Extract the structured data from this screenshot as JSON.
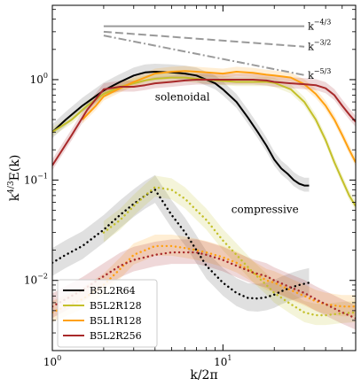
{
  "chart_data": {
    "type": "line",
    "xlabel": "k/2π",
    "ylabel": "k^4/3 E(k)",
    "xscale": "log",
    "yscale": "log",
    "xlim": [
      1,
      60
    ],
    "ylim": [
      0.002,
      5.5
    ],
    "xticks": [
      {
        "value": 1,
        "label": "10",
        "exp": "0"
      },
      {
        "value": 10,
        "label": "10",
        "exp": "1"
      }
    ],
    "yticks": [
      {
        "value": 0.01,
        "label": "10",
        "exp": "−2"
      },
      {
        "value": 0.1,
        "label": "10",
        "exp": "−1"
      },
      {
        "value": 1,
        "label": "10",
        "exp": "0"
      }
    ],
    "legend_position": "lower-left",
    "annotations": [
      {
        "text": "solenoidal",
        "x": 4.0,
        "y": 0.62
      },
      {
        "text": "compressive",
        "x": 11.2,
        "y": 0.047
      }
    ],
    "reference_lines": [
      {
        "label": "−4/3",
        "style": "solid",
        "x": [
          2.0,
          30.0
        ],
        "y": [
          3.4,
          3.4
        ]
      },
      {
        "label": "−3/2",
        "style": "dash",
        "x": [
          2.0,
          30.0
        ],
        "y": [
          3.0,
          2.13
        ]
      },
      {
        "label": "−5/3",
        "style": "dashdot",
        "x": [
          2.0,
          30.0
        ],
        "y": [
          2.75,
          1.11
        ]
      }
    ],
    "series": [
      {
        "name": "B5L2R64",
        "color": "#000000",
        "solenoidal": {
          "x": [
            1,
            1.2,
            1.5,
            2,
            2.5,
            3,
            3.5,
            4,
            5,
            6,
            7,
            8,
            9,
            10,
            12,
            14,
            16,
            18,
            20,
            22,
            24,
            26,
            28,
            30,
            32
          ],
          "y": [
            0.3,
            0.4,
            0.55,
            0.78,
            0.95,
            1.1,
            1.18,
            1.2,
            1.18,
            1.15,
            1.1,
            1.0,
            0.92,
            0.8,
            0.6,
            0.42,
            0.3,
            0.22,
            0.16,
            0.13,
            0.115,
            0.1,
            0.092,
            0.088,
            0.088
          ],
          "band": [
            1.2,
            1.15
          ]
        },
        "compressive": {
          "x": [
            1,
            1.2,
            1.5,
            2,
            2.5,
            3,
            3.5,
            4,
            5,
            6,
            7,
            8,
            10,
            12,
            14,
            16,
            18,
            20,
            22,
            25,
            28,
            32
          ],
          "y": [
            0.015,
            0.018,
            0.022,
            0.032,
            0.045,
            0.058,
            0.07,
            0.08,
            0.045,
            0.03,
            0.02,
            0.014,
            0.0095,
            0.0075,
            0.0067,
            0.0066,
            0.0068,
            0.0072,
            0.0078,
            0.0085,
            0.009,
            0.0095
          ],
          "band": [
            1.4,
            1.35
          ]
        }
      },
      {
        "name": "B5L2R128",
        "color": "#c4c02a",
        "solenoidal": {
          "x": [
            1,
            1.3,
            1.6,
            2,
            2.5,
            3,
            3.5,
            4,
            5,
            6,
            7,
            8,
            10,
            12,
            15,
            18,
            20,
            25,
            30,
            35,
            40,
            45,
            50,
            55,
            60
          ],
          "y": [
            0.3,
            0.4,
            0.55,
            0.72,
            0.85,
            0.92,
            0.98,
            1.02,
            1.05,
            1.05,
            1.02,
            1.0,
            0.97,
            0.95,
            0.95,
            0.95,
            0.93,
            0.8,
            0.6,
            0.4,
            0.25,
            0.15,
            0.1,
            0.07,
            0.055
          ],
          "band": [
            1.12,
            1.1
          ]
        },
        "compressive": {
          "x": [
            2,
            2.5,
            3,
            3.5,
            4,
            5,
            6,
            7,
            8,
            10,
            12,
            15,
            18,
            20,
            25,
            30,
            35,
            40,
            50,
            60
          ],
          "y": [
            0.03,
            0.04,
            0.055,
            0.07,
            0.085,
            0.08,
            0.065,
            0.05,
            0.04,
            0.025,
            0.018,
            0.012,
            0.009,
            0.0075,
            0.0058,
            0.0048,
            0.0045,
            0.0045,
            0.0047,
            0.0048
          ],
          "band": [
            1.3,
            1.25
          ]
        }
      },
      {
        "name": "B5L1R128",
        "color": "#ffa010",
        "solenoidal": {
          "x": [
            1.5,
            1.8,
            2,
            2.5,
            3,
            3.5,
            4,
            5,
            6,
            7,
            8,
            10,
            12,
            15,
            18,
            20,
            25,
            30,
            35,
            40,
            45,
            50,
            55,
            60
          ],
          "y": [
            0.4,
            0.55,
            0.68,
            0.82,
            0.95,
            1.05,
            1.15,
            1.2,
            1.22,
            1.2,
            1.18,
            1.15,
            1.2,
            1.17,
            1.12,
            1.1,
            1.05,
            0.9,
            0.72,
            0.55,
            0.4,
            0.28,
            0.2,
            0.15
          ],
          "band": [
            1.12,
            1.1
          ]
        },
        "compressive": {
          "x": [
            1,
            1.5,
            2,
            2.5,
            3,
            3.5,
            4,
            5,
            6,
            7,
            8,
            10,
            12,
            15,
            18,
            20,
            25,
            30,
            35,
            40,
            50,
            60
          ],
          "y": [
            0.0048,
            0.0065,
            0.009,
            0.013,
            0.018,
            0.02,
            0.022,
            0.022,
            0.021,
            0.02,
            0.019,
            0.017,
            0.015,
            0.012,
            0.01,
            0.0095,
            0.008,
            0.007,
            0.0062,
            0.0058,
            0.0055,
            0.0055
          ],
          "band": [
            1.3,
            1.25
          ]
        }
      },
      {
        "name": "B5L2R256",
        "color": "#a8292a",
        "solenoidal": {
          "x": [
            1,
            1.3,
            1.6,
            2,
            2.5,
            3,
            3.5,
            4,
            5,
            6,
            7,
            8,
            10,
            12,
            15,
            18,
            20,
            25,
            30,
            35,
            40,
            45,
            50,
            55,
            60
          ],
          "y": [
            0.14,
            0.28,
            0.5,
            0.8,
            0.85,
            0.85,
            0.88,
            0.92,
            0.95,
            0.98,
            1.0,
            1.0,
            1.0,
            1.0,
            1.0,
            0.98,
            0.95,
            0.92,
            0.9,
            0.88,
            0.82,
            0.7,
            0.55,
            0.45,
            0.38
          ],
          "band": [
            1.15,
            1.12
          ]
        },
        "compressive": {
          "x": [
            1,
            1.5,
            2,
            2.5,
            3,
            3.5,
            4,
            5,
            6,
            7,
            8,
            10,
            12,
            15,
            18,
            20,
            25,
            30,
            35,
            40,
            50,
            60
          ],
          "y": [
            0.0055,
            0.008,
            0.011,
            0.014,
            0.016,
            0.017,
            0.018,
            0.019,
            0.019,
            0.019,
            0.018,
            0.016,
            0.014,
            0.012,
            0.011,
            0.01,
            0.0085,
            0.0075,
            0.0065,
            0.0058,
            0.0048,
            0.0042
          ],
          "band": [
            1.35,
            1.3
          ]
        }
      }
    ]
  }
}
